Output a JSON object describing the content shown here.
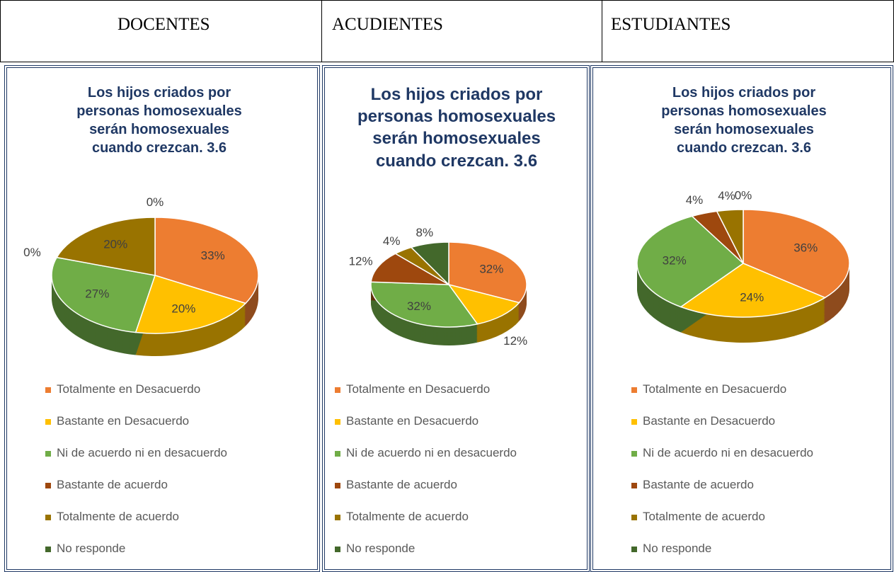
{
  "table": {
    "headers": [
      "DOCENTES",
      "ACUDIENTES",
      "ESTUDIANTES"
    ]
  },
  "chart_data": [
    {
      "type": "pie",
      "title": "Los hijos criados por personas homosexuales serán homosexuales cuando crezcan. 3.6",
      "categories": [
        "Totalmente en Desacuerdo",
        "Bastante en Desacuerdo",
        "Ni de acuerdo ni en desacuerdo",
        "Bastante de acuerdo",
        "Totalmente de acuerdo",
        "No responde"
      ],
      "values": [
        33,
        20,
        27,
        0,
        20,
        0
      ],
      "value_labels": [
        "33%",
        "20%",
        "27%",
        "0%",
        "20%",
        "0%"
      ],
      "colors": [
        "#ED7D31",
        "#FFC000",
        "#70AD47",
        "#9E480E",
        "#997300",
        "#43682B"
      ]
    },
    {
      "type": "pie",
      "title": "Los hijos criados por personas homosexuales serán homosexuales cuando crezcan. 3.6",
      "categories": [
        "Totalmente en Desacuerdo",
        "Bastante en Desacuerdo",
        "Ni de acuerdo ni en desacuerdo",
        "Bastante de acuerdo",
        "Totalmente de acuerdo",
        "No responde"
      ],
      "values": [
        32,
        12,
        32,
        12,
        4,
        8
      ],
      "value_labels": [
        "32%",
        "12%",
        "32%",
        "12%",
        "4%",
        "8%"
      ],
      "colors": [
        "#ED7D31",
        "#FFC000",
        "#70AD47",
        "#9E480E",
        "#997300",
        "#43682B"
      ]
    },
    {
      "type": "pie",
      "title": "Los hijos criados por personas homosexuales serán homosexuales cuando crezcan. 3.6",
      "categories": [
        "Totalmente en Desacuerdo",
        "Bastante en Desacuerdo",
        "Ni de acuerdo ni en desacuerdo",
        "Bastante de acuerdo",
        "Totalmente de acuerdo",
        "No responde"
      ],
      "values": [
        36,
        24,
        32,
        4,
        4,
        0
      ],
      "value_labels": [
        "36%",
        "24%",
        "32%",
        "4%",
        "4%",
        "0%"
      ],
      "colors": [
        "#ED7D31",
        "#FFC000",
        "#70AD47",
        "#9E480E",
        "#997300",
        "#43682B"
      ]
    }
  ]
}
